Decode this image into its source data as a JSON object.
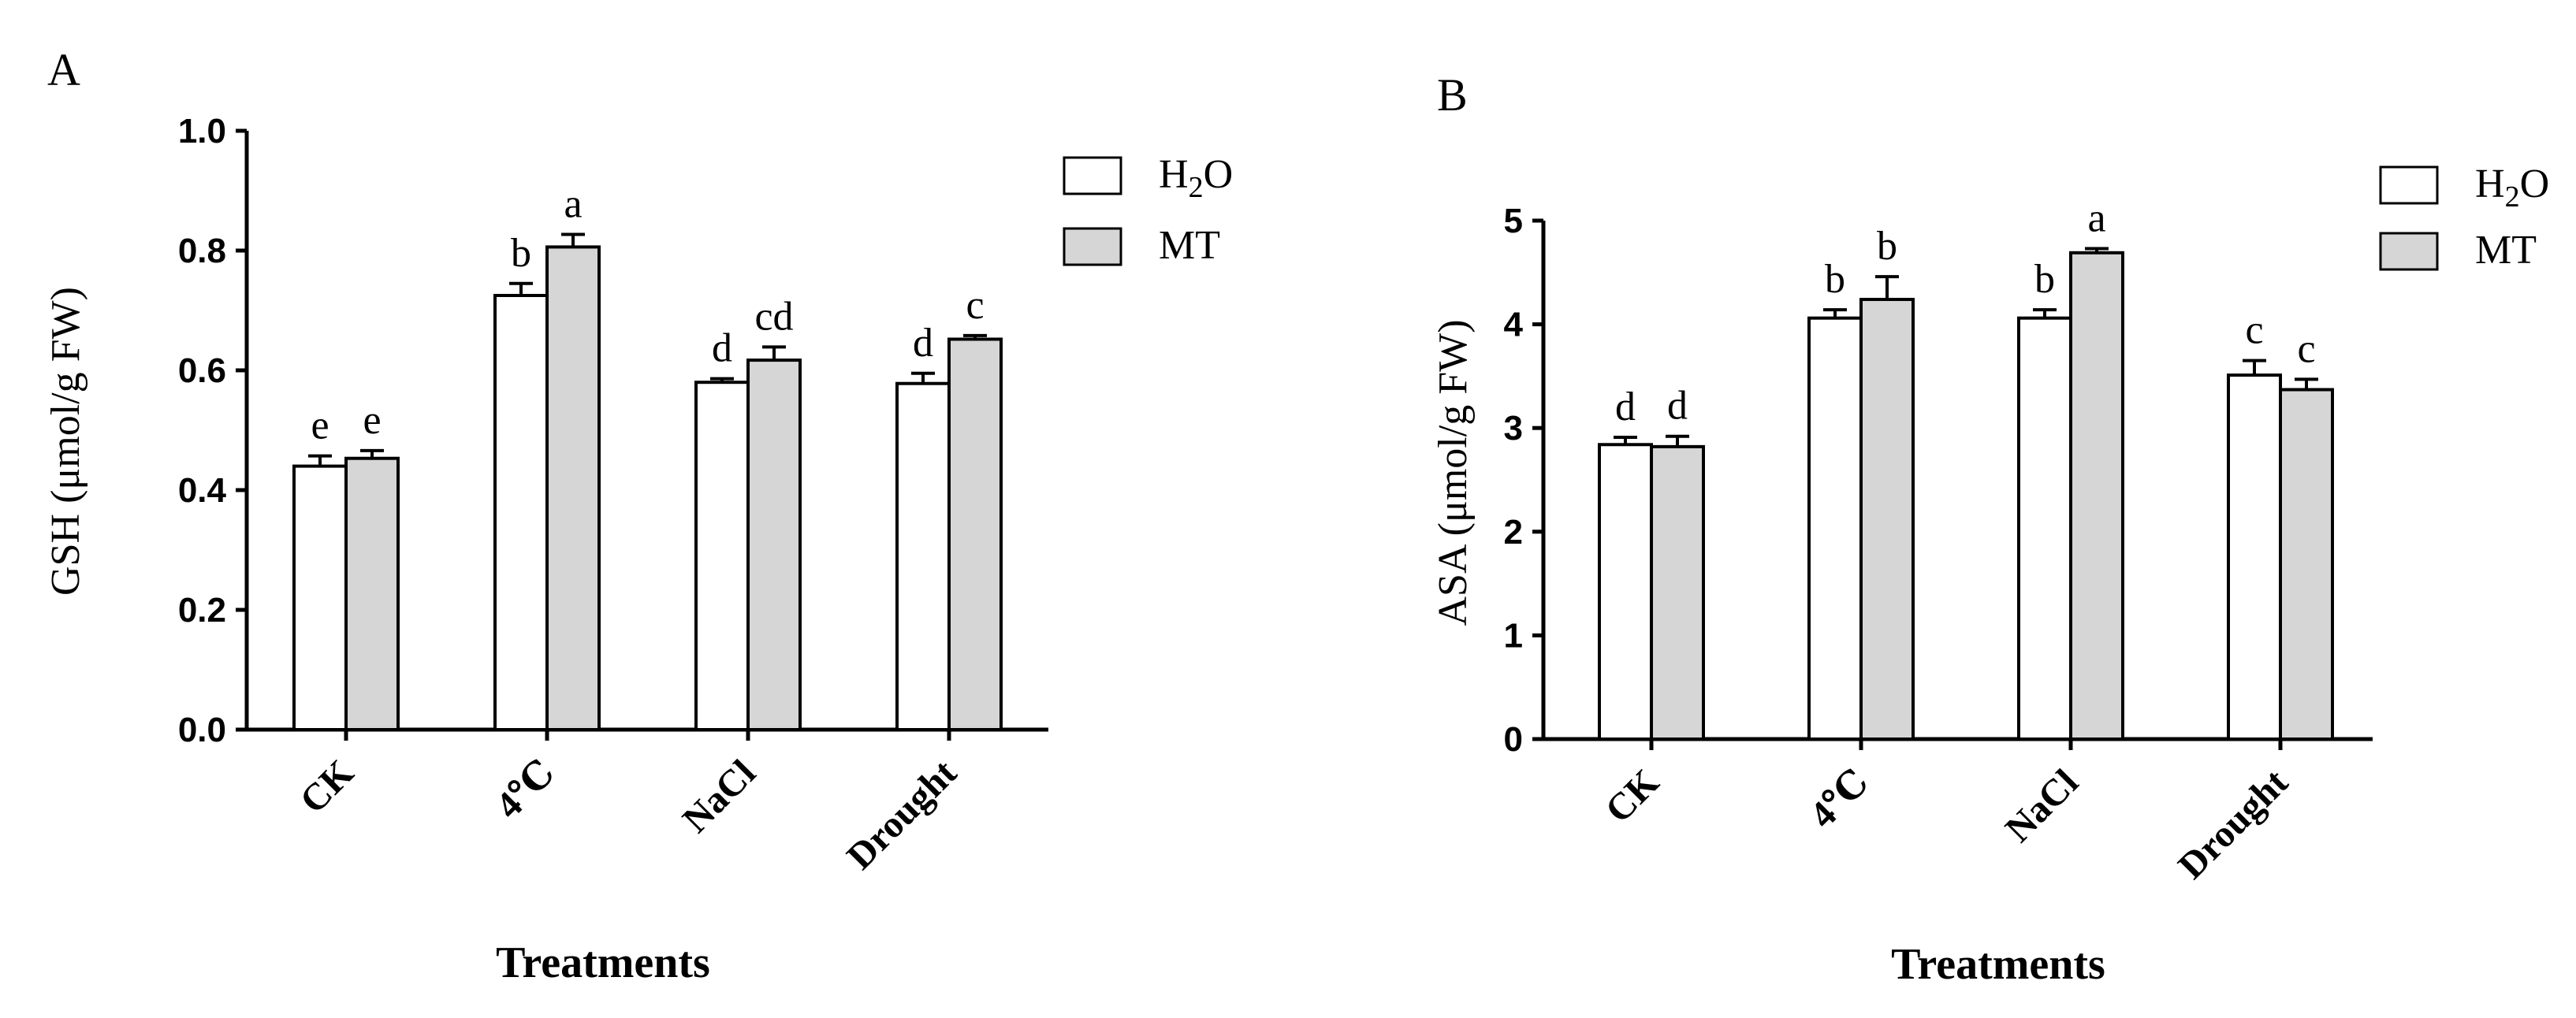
{
  "colors": {
    "h2o_fill": "#ffffff",
    "mt_fill": "#d6d6d6",
    "stroke": "#000000"
  },
  "legend": {
    "h2o_label": "H",
    "h2o_sub": "2",
    "h2o_tail": "O",
    "mt_label": "MT"
  },
  "chart_data": [
    {
      "panel": "A",
      "type": "bar",
      "title": "",
      "xlabel": "Treatments",
      "ylabel": "GSH (μmol/g FW)",
      "ylim": [
        0,
        1.0
      ],
      "yticks": [
        "0.0",
        "0.2",
        "0.4",
        "0.6",
        "0.8",
        "1.0"
      ],
      "categories": [
        "CK",
        "4℃",
        "NaCl",
        "Drought"
      ],
      "legend_position": "top-right",
      "grid": false,
      "series": [
        {
          "name": "H2O",
          "values": [
            0.44,
            0.725,
            0.58,
            0.578
          ],
          "errors": [
            0.017,
            0.02,
            0.006,
            0.017
          ],
          "letters": [
            "e",
            "b",
            "d",
            "d"
          ]
        },
        {
          "name": "MT",
          "values": [
            0.453,
            0.806,
            0.617,
            0.652
          ],
          "errors": [
            0.013,
            0.021,
            0.022,
            0.006
          ],
          "letters": [
            "e",
            "a",
            "cd",
            "c"
          ]
        }
      ]
    },
    {
      "panel": "B",
      "type": "bar",
      "title": "",
      "xlabel": "Treatments",
      "ylabel": "ASA (μmol/g FW)",
      "ylim": [
        0,
        5
      ],
      "yticks": [
        "0",
        "1",
        "2",
        "3",
        "4",
        "5"
      ],
      "categories": [
        "CK",
        "4℃",
        "NaCl",
        "Drought"
      ],
      "legend_position": "top-right",
      "grid": false,
      "series": [
        {
          "name": "H2O",
          "values": [
            2.84,
            4.06,
            4.06,
            3.51
          ],
          "errors": [
            0.07,
            0.08,
            0.08,
            0.14
          ],
          "letters": [
            "d",
            "b",
            "b",
            "c"
          ]
        },
        {
          "name": "MT",
          "values": [
            2.82,
            4.24,
            4.69,
            3.37
          ],
          "errors": [
            0.1,
            0.22,
            0.04,
            0.1
          ],
          "letters": [
            "d",
            "b",
            "a",
            "c"
          ]
        }
      ]
    }
  ]
}
